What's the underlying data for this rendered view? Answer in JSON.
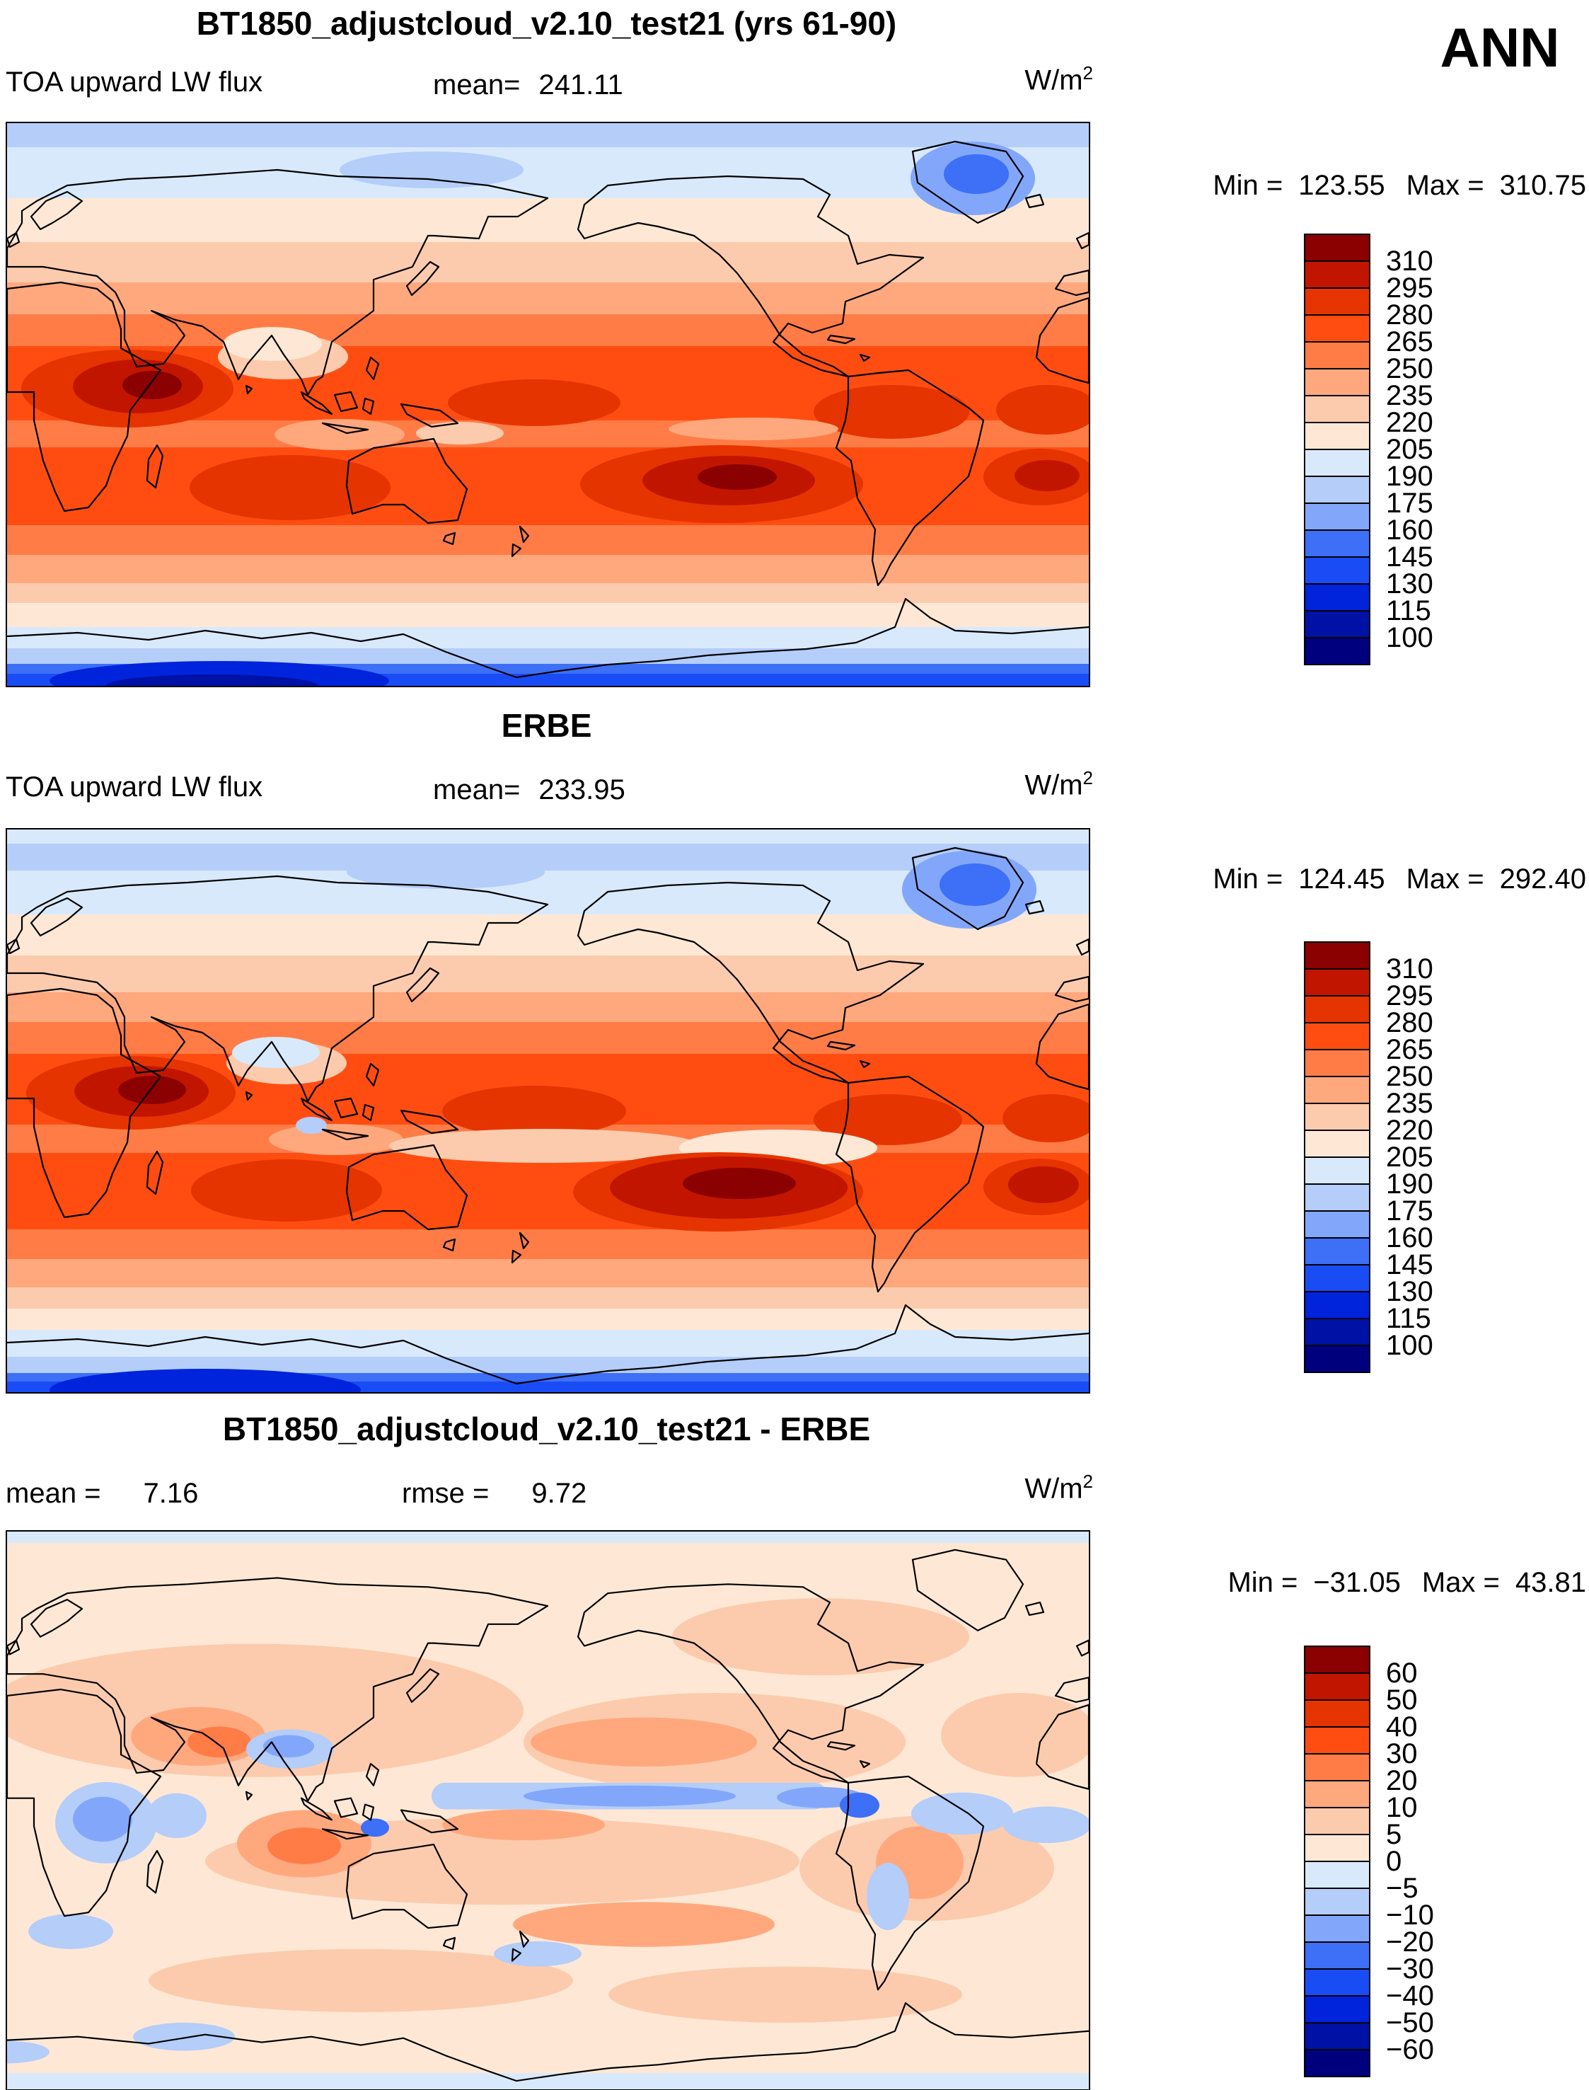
{
  "page": {
    "season_label": "ANN"
  },
  "palette": [
    "#8B0000",
    "#C21500",
    "#E63400",
    "#FF4D12",
    "#FF7C47",
    "#FFA87E",
    "#FCCBAD",
    "#FEE8D5",
    "#D9E9FC",
    "#B4CDF9",
    "#82A7FA",
    "#3D6FF7",
    "#1A4CF5",
    "#0023DC",
    "#0011A5",
    "#00007F"
  ],
  "panels": [
    {
      "title": "BT1850_adjustcloud_v2.10_test21 (yrs 61-90)",
      "field_label": "TOA upward LW flux",
      "mean_label": "mean=",
      "mean_value": "241.11",
      "units_base": "W/m",
      "units_exp": "2",
      "min_label": "Min =",
      "min_value": "123.55",
      "max_label": "Max =",
      "max_value": "310.75",
      "colorbar_labels": [
        "310",
        "295",
        "280",
        "265",
        "250",
        "235",
        "220",
        "205",
        "190",
        "175",
        "160",
        "145",
        "130",
        "115",
        "100"
      ]
    },
    {
      "title": "ERBE",
      "field_label": "TOA upward LW flux",
      "mean_label": "mean=",
      "mean_value": "233.95",
      "units_base": "W/m",
      "units_exp": "2",
      "min_label": "Min =",
      "min_value": "124.45",
      "max_label": "Max =",
      "max_value": "292.40",
      "colorbar_labels": [
        "310",
        "295",
        "280",
        "265",
        "250",
        "235",
        "220",
        "205",
        "190",
        "175",
        "160",
        "145",
        "130",
        "115",
        "100"
      ]
    },
    {
      "title": "BT1850_adjustcloud_v2.10_test21 - ERBE",
      "mean_label": "mean =",
      "mean_value": "7.16",
      "rmse_label": "rmse =",
      "rmse_value": "9.72",
      "units_base": "W/m",
      "units_exp": "2",
      "min_label": "Min =",
      "min_value": "−31.05",
      "max_label": "Max =",
      "max_value": "43.81",
      "colorbar_labels": [
        "60",
        "50",
        "40",
        "30",
        "20",
        "10",
        "5",
        "0",
        "−5",
        "−10",
        "−20",
        "−30",
        "−40",
        "−50",
        "−60"
      ]
    }
  ],
  "chart_data": [
    {
      "type": "heatmap",
      "title": "BT1850_adjustcloud_v2.10_test21 (yrs 61-90)",
      "season": "ANN",
      "variable": "TOA upward LW flux",
      "units": "W/m^2",
      "mean": 241.11,
      "min": 123.55,
      "max": 310.75,
      "contour_levels": [
        100,
        115,
        130,
        145,
        160,
        175,
        190,
        205,
        220,
        235,
        250,
        265,
        280,
        295,
        310
      ],
      "palette_high_to_low": [
        "#8B0000",
        "#C21500",
        "#E63400",
        "#FF4D12",
        "#FF7C47",
        "#FFA87E",
        "#FCCBAD",
        "#FEE8D5",
        "#D9E9FC",
        "#B4CDF9",
        "#82A7FA",
        "#3D6FF7",
        "#1A4CF5",
        "#0023DC",
        "#0011A5",
        "#00007F"
      ],
      "projection": "global cylindrical lat-lon, 0-360E, 90N top",
      "legend_position": "right",
      "description": "Filled contour global map: high LW flux (red, >280) in subtropics over N Africa/Arabia, central Pacific and South Pacific; light values near equator; low flux (blue, <190) over poles with minimum over Antarctica."
    },
    {
      "type": "heatmap",
      "title": "ERBE",
      "season": "ANN",
      "variable": "TOA upward LW flux",
      "units": "W/m^2",
      "mean": 233.95,
      "min": 124.45,
      "max": 292.4,
      "contour_levels": [
        100,
        115,
        130,
        145,
        160,
        175,
        190,
        205,
        220,
        235,
        250,
        265,
        280,
        295,
        310
      ],
      "palette_high_to_low": [
        "#8B0000",
        "#C21500",
        "#E63400",
        "#FF4D12",
        "#FF7C47",
        "#FFA87E",
        "#FCCBAD",
        "#FEE8D5",
        "#D9E9FC",
        "#B4CDF9",
        "#82A7FA",
        "#3D6FF7",
        "#1A4CF5",
        "#0023DC",
        "#0011A5",
        "#00007F"
      ],
      "projection": "global cylindrical lat-lon, 0-360E, 90N top",
      "legend_position": "right",
      "description": "Observed ERBE TOA upward LW flux with same contour levels; maxima over Arabia and subtropical South Pacific, minima over polar regions."
    },
    {
      "type": "heatmap",
      "title": "BT1850_adjustcloud_v2.10_test21 - ERBE",
      "season": "ANN",
      "variable": "TOA upward LW flux difference",
      "units": "W/m^2",
      "mean": 7.16,
      "rmse": 9.72,
      "min": -31.05,
      "max": 43.81,
      "contour_levels": [
        -60,
        -50,
        -40,
        -30,
        -20,
        -10,
        -5,
        0,
        5,
        10,
        20,
        30,
        40,
        50,
        60
      ],
      "palette_high_to_low": [
        "#8B0000",
        "#C21500",
        "#E63400",
        "#FF4D12",
        "#FF7C47",
        "#FFA87E",
        "#FCCBAD",
        "#FEE8D5",
        "#D9E9FC",
        "#B4CDF9",
        "#82A7FA",
        "#3D6FF7",
        "#1A4CF5",
        "#0023DC",
        "#0011A5",
        "#00007F"
      ],
      "projection": "global cylindrical lat-lon, 0-360E, 90N top",
      "legend_position": "right",
      "description": "Model minus ERBE difference: mostly +0 to +10 (light peach/salmon) with negative (blue) anomalies over the equatorial Pacific band, Tibet, Arabian Sea and southeast Pacific."
    }
  ]
}
